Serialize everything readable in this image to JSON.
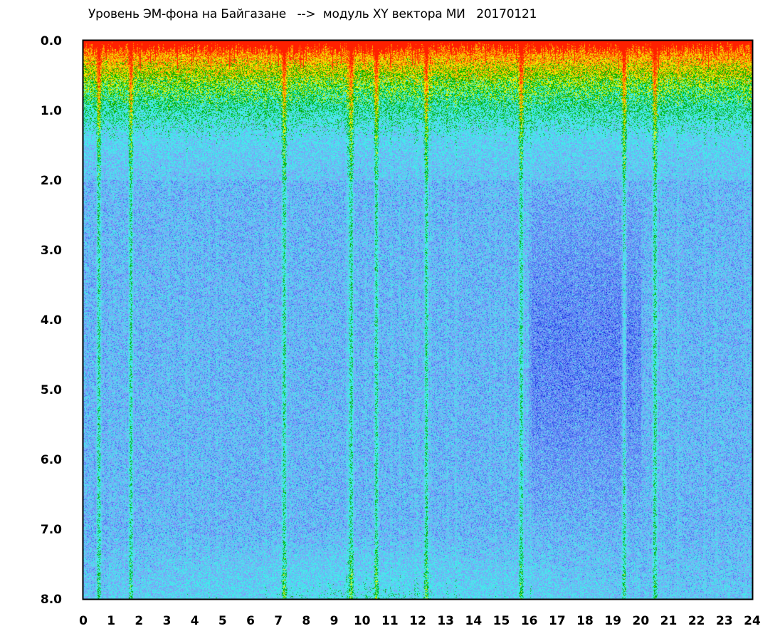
{
  "chart_data": {
    "type": "heatmap",
    "title": "Уровень ЭМ-фона на Байгазане   -->  модуль XY вектора МИ   20170121",
    "xlabel": "",
    "ylabel": "",
    "xlim": [
      0,
      24
    ],
    "ylim": [
      0,
      8
    ],
    "y_axis_inverted": true,
    "grid": false,
    "x_ticks": [
      "0",
      "1",
      "2",
      "3",
      "4",
      "5",
      "6",
      "7",
      "8",
      "9",
      "10",
      "11",
      "12",
      "13",
      "14",
      "15",
      "16",
      "17",
      "18",
      "19",
      "20",
      "21",
      "22",
      "23",
      "24"
    ],
    "y_ticks": [
      "0.0",
      "1.0",
      "2.0",
      "3.0",
      "4.0",
      "5.0",
      "6.0",
      "7.0",
      "8.0"
    ],
    "colors": {
      "background": "#ffffff",
      "frame": "#000000",
      "scale": [
        "#1428e0",
        "#4a6ef0",
        "#7f9cf8",
        "#5ed8f0",
        "#38f0e8",
        "#00b000",
        "#f0f000",
        "#ff9000",
        "#ff2000"
      ]
    },
    "features": {
      "bright_columns_hours": [
        0.55,
        1.7,
        7.2,
        9.6,
        10.5,
        12.3,
        15.7,
        19.4,
        20.5
      ],
      "high_level_band_depth": [
        0.0,
        2.0
      ],
      "dark_region_hours": [
        16.0,
        20.0
      ],
      "dark_region_depth": [
        2.0,
        7.0
      ],
      "light_band_depth": [
        7.0,
        8.0
      ]
    }
  }
}
